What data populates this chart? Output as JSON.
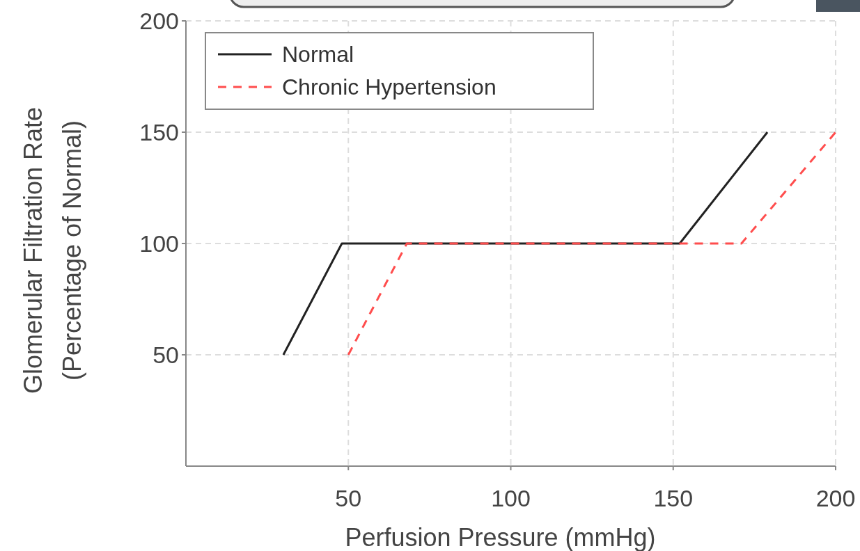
{
  "chart_data": {
    "type": "line",
    "xlabel": "Perfusion Pressure (mmHg)",
    "ylabel": "Glomerular Filtration Rate\n(Percentage of Normal)",
    "xlim": [
      0,
      200
    ],
    "xticks": [
      50,
      100,
      150,
      200
    ],
    "ylim": [
      0,
      200
    ],
    "yticks": [
      50,
      100,
      150,
      200
    ],
    "grid": true,
    "legend": "top left",
    "series": [
      {
        "name": "Normal",
        "color": "#222222",
        "line_style": "solid",
        "x": [
          30,
          48,
          152,
          179
        ],
        "values": [
          50,
          100,
          100,
          150
        ]
      },
      {
        "name": "Chronic Hypertension",
        "color": "#ff4d4d",
        "line_style": "dashed",
        "x": [
          50,
          68,
          171,
          200
        ],
        "values": [
          50,
          100,
          100,
          150
        ]
      }
    ]
  }
}
